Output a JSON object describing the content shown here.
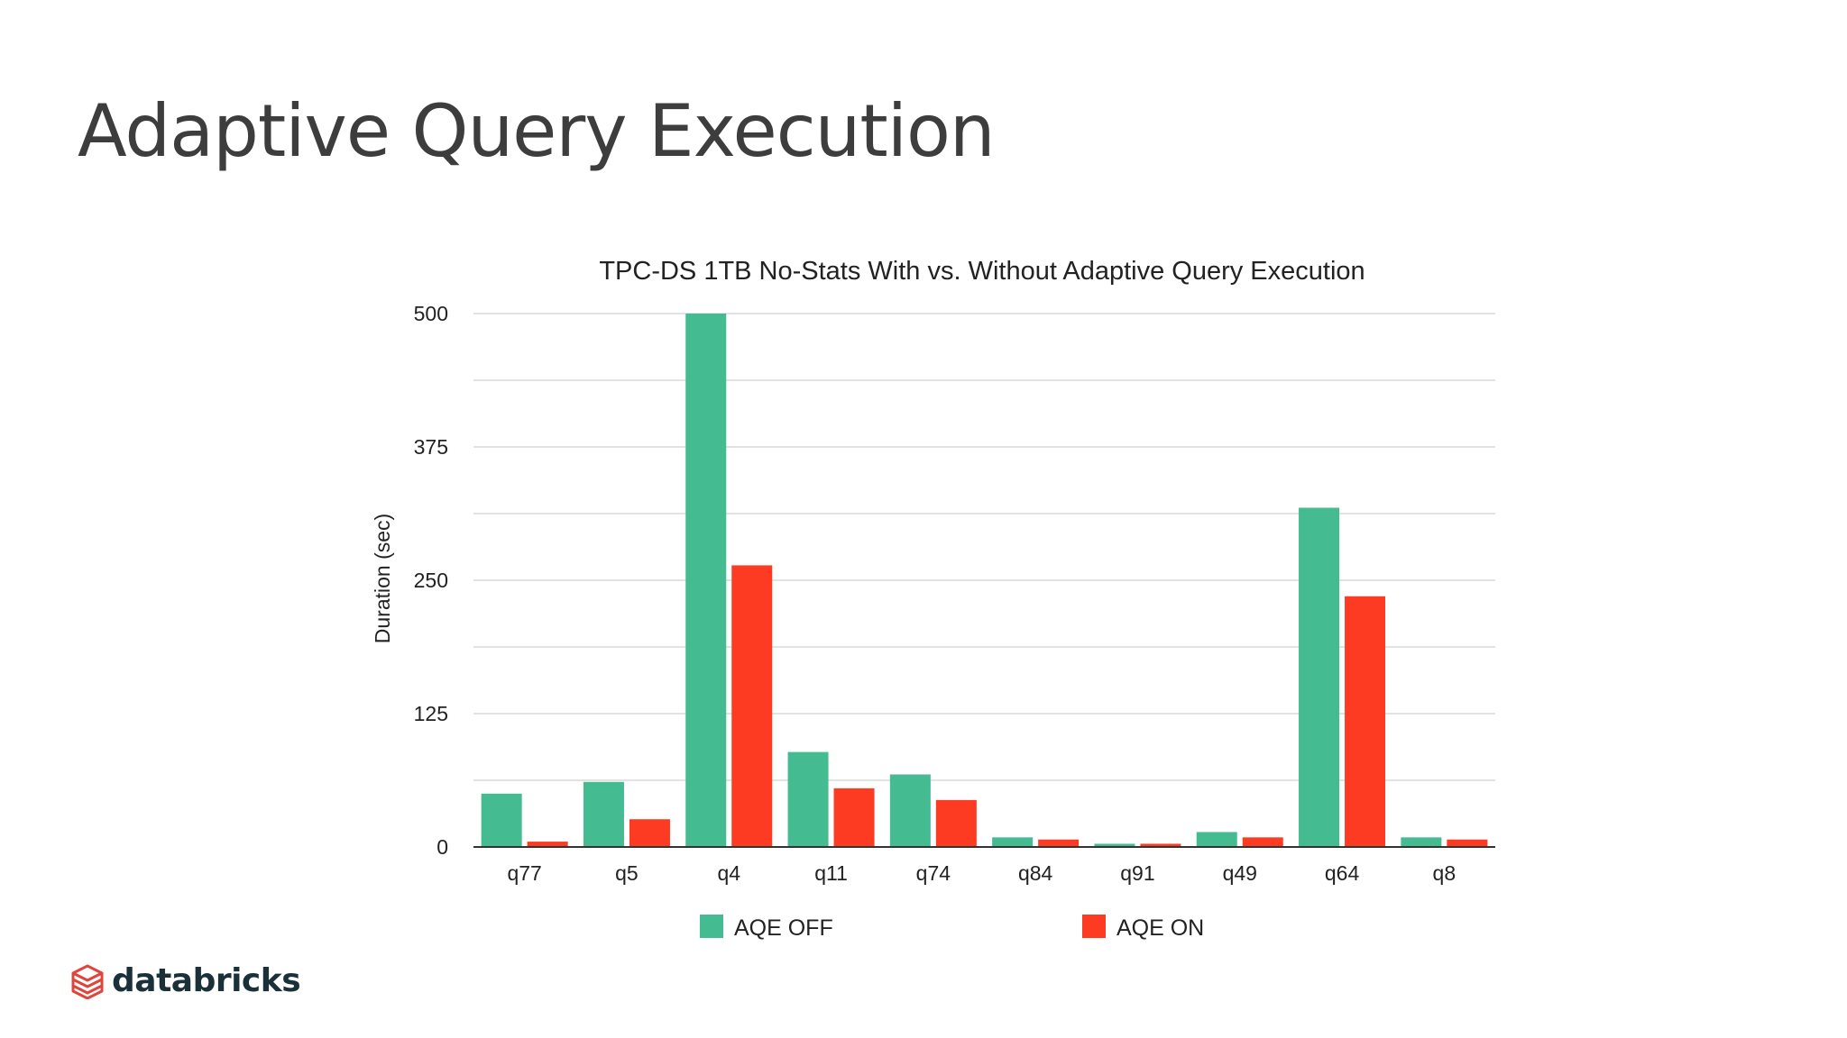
{
  "slide": {
    "title": "Adaptive Query Execution"
  },
  "brand": {
    "name": "databricks",
    "icon": "databricks-logo-icon",
    "color": "#e0443a"
  },
  "chart_data": {
    "type": "bar",
    "title": "TPC-DS 1TB No-Stats With vs. Without Adaptive Query Execution",
    "xlabel": "",
    "ylabel": "Duration (sec)",
    "ylim": [
      0,
      500
    ],
    "yticks": [
      0,
      125,
      250,
      375,
      500
    ],
    "grid": true,
    "legend": "bottom",
    "categories": [
      "q77",
      "q5",
      "q4",
      "q11",
      "q74",
      "q84",
      "q91",
      "q49",
      "q64",
      "q8"
    ],
    "series": [
      {
        "name": "AQE OFF",
        "color": "#45bb92",
        "values": [
          50,
          61,
          500,
          89,
          68,
          9,
          3,
          14,
          318,
          9
        ]
      },
      {
        "name": "AQE ON",
        "color": "#fd3a22",
        "values": [
          5,
          26,
          264,
          55,
          44,
          7,
          3,
          9,
          235,
          7
        ]
      }
    ]
  }
}
